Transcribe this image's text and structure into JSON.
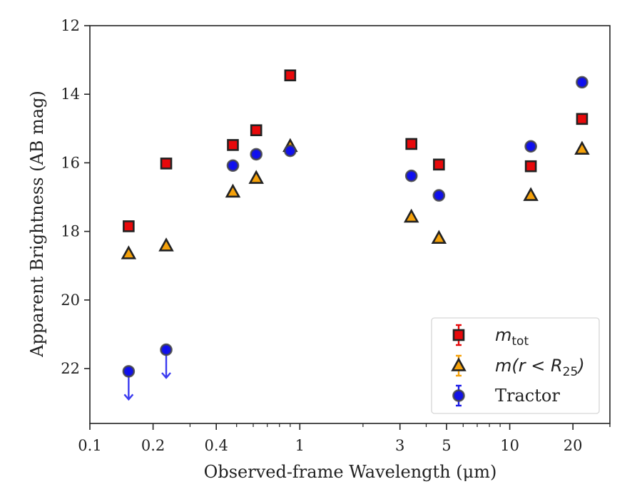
{
  "chart_data": {
    "type": "scatter",
    "xlabel": "Observed-frame Wavelength (μm)",
    "ylabel": "Apparent Brightness (AB mag)",
    "x_scale": "log",
    "y_inverted": true,
    "xlim": [
      0.1,
      30
    ],
    "ylim": [
      23.6,
      12
    ],
    "grid": false,
    "legend_position": "bottom-right",
    "x_ticks": [
      {
        "value": 0.1,
        "label": "0.1"
      },
      {
        "value": 0.2,
        "label": "0.2"
      },
      {
        "value": 0.4,
        "label": "0.4"
      },
      {
        "value": 1,
        "label": "1"
      },
      {
        "value": 3,
        "label": "3"
      },
      {
        "value": 5,
        "label": "5"
      },
      {
        "value": 10,
        "label": "10"
      },
      {
        "value": 20,
        "label": "20"
      }
    ],
    "y_ticks": [
      {
        "value": 12,
        "label": "12"
      },
      {
        "value": 14,
        "label": "14"
      },
      {
        "value": 16,
        "label": "16"
      },
      {
        "value": 18,
        "label": "18"
      },
      {
        "value": 20,
        "label": "20"
      },
      {
        "value": 22,
        "label": "22"
      }
    ],
    "series": [
      {
        "name": "m_tot",
        "label_main": "m",
        "label_sub": "tot",
        "marker": "square",
        "color": "#e8090b",
        "edge_color": "#222222",
        "points": [
          {
            "x": 0.153,
            "y": 17.85
          },
          {
            "x": 0.231,
            "y": 16.02
          },
          {
            "x": 0.48,
            "y": 15.48
          },
          {
            "x": 0.62,
            "y": 15.05
          },
          {
            "x": 0.9,
            "y": 13.45
          },
          {
            "x": 3.4,
            "y": 15.45
          },
          {
            "x": 4.6,
            "y": 16.05
          },
          {
            "x": 12.6,
            "y": 16.1
          },
          {
            "x": 22.1,
            "y": 14.72
          }
        ]
      },
      {
        "name": "m(r < R25)",
        "label_prefix": "m(r < R",
        "label_sub": "25",
        "label_suffix": ")",
        "marker": "triangle",
        "color": "#f5a10a",
        "edge_color": "#222222",
        "points": [
          {
            "x": 0.153,
            "y": 18.65
          },
          {
            "x": 0.231,
            "y": 18.42
          },
          {
            "x": 0.48,
            "y": 16.85
          },
          {
            "x": 0.62,
            "y": 16.45
          },
          {
            "x": 0.9,
            "y": 15.52
          },
          {
            "x": 3.4,
            "y": 17.58
          },
          {
            "x": 4.6,
            "y": 18.2
          },
          {
            "x": 12.6,
            "y": 16.95
          },
          {
            "x": 22.1,
            "y": 15.6
          }
        ]
      },
      {
        "name": "Tractor",
        "marker": "circle",
        "color": "#1212e6",
        "edge_color": "#444444",
        "points": [
          {
            "x": 0.153,
            "y": 22.08,
            "upper_limit": true
          },
          {
            "x": 0.231,
            "y": 21.45,
            "upper_limit": true
          },
          {
            "x": 0.48,
            "y": 16.08
          },
          {
            "x": 0.62,
            "y": 15.75
          },
          {
            "x": 0.9,
            "y": 15.65
          },
          {
            "x": 3.4,
            "y": 16.38
          },
          {
            "x": 4.6,
            "y": 16.95
          },
          {
            "x": 12.6,
            "y": 15.52
          },
          {
            "x": 22.1,
            "y": 13.65
          }
        ]
      }
    ]
  }
}
